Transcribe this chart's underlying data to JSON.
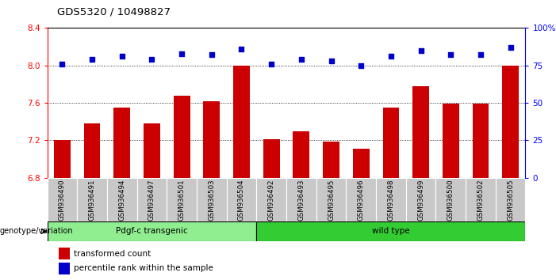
{
  "title": "GDS5320 / 10498827",
  "categories": [
    "GSM936490",
    "GSM936491",
    "GSM936494",
    "GSM936497",
    "GSM936501",
    "GSM936503",
    "GSM936504",
    "GSM936492",
    "GSM936493",
    "GSM936495",
    "GSM936496",
    "GSM936498",
    "GSM936499",
    "GSM936500",
    "GSM936502",
    "GSM936505"
  ],
  "bar_values": [
    7.2,
    7.38,
    7.55,
    7.38,
    7.68,
    7.62,
    8.0,
    7.21,
    7.3,
    7.19,
    7.11,
    7.55,
    7.78,
    7.59,
    7.59,
    8.0
  ],
  "dot_values": [
    76,
    79,
    81,
    79,
    83,
    82,
    86,
    76,
    79,
    78,
    75,
    81,
    85,
    82,
    82,
    87
  ],
  "ylim": [
    6.8,
    8.4
  ],
  "y2lim": [
    0,
    100
  ],
  "yticks": [
    6.8,
    7.2,
    7.6,
    8.0,
    8.4
  ],
  "y2ticks": [
    0,
    25,
    50,
    75,
    100
  ],
  "bar_color": "#cc0000",
  "dot_color": "#0000cc",
  "group1_label": "Pdgf-c transgenic",
  "group2_label": "wild type",
  "group1_count": 7,
  "group2_count": 9,
  "group1_color": "#90ee90",
  "group2_color": "#33cc33",
  "genotype_label": "genotype/variation",
  "legend_bar": "transformed count",
  "legend_dot": "percentile rank within the sample",
  "bar_bottom": 6.8,
  "tick_bg_color": "#c8c8c8"
}
